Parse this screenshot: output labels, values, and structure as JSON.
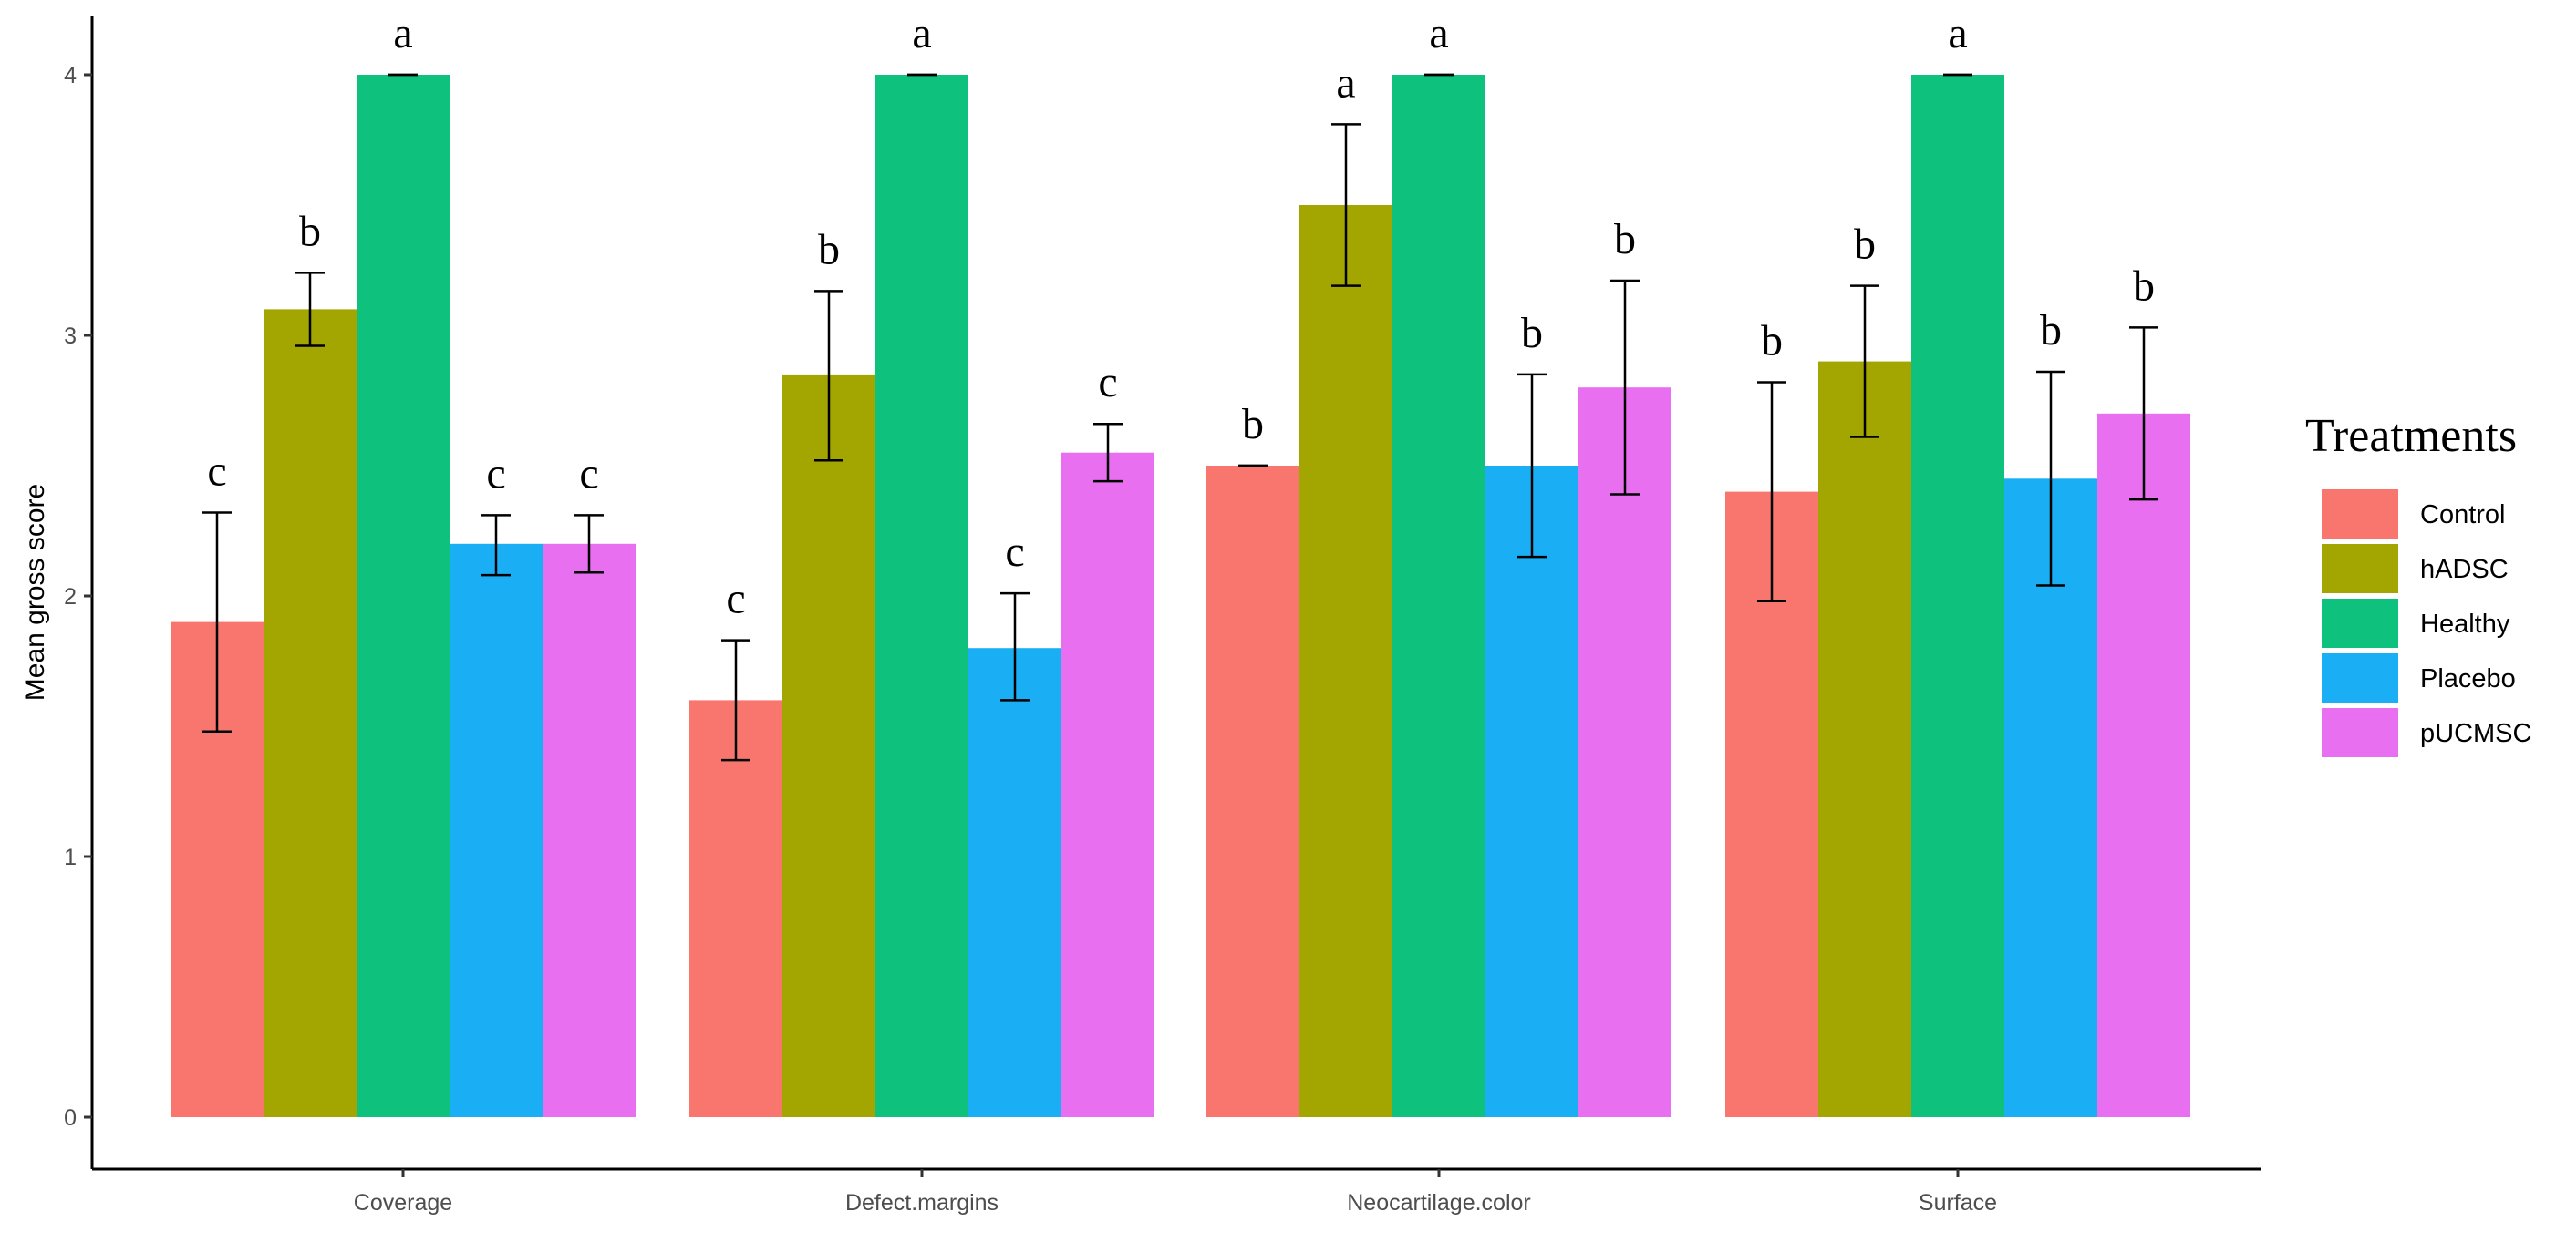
{
  "chart_data": {
    "type": "bar",
    "title": "",
    "xlabel": "",
    "ylabel": "Mean gross score",
    "ylim": [
      0,
      4.25
    ],
    "yticks": [
      "0",
      "1",
      "2",
      "3",
      "4"
    ],
    "grid": false,
    "legend_position": "right",
    "legend_title": "Treatments",
    "categories": [
      "Coverage",
      "Defect.margins",
      "Neocartilage.color",
      "Surface"
    ],
    "series": [
      {
        "name": "Control",
        "color": "#f8766d",
        "values": [
          1.9,
          1.6,
          2.5,
          2.4
        ],
        "errors": [
          [
            1.48,
            2.32
          ],
          [
            1.37,
            1.83
          ],
          [
            2.5,
            2.5
          ],
          [
            1.98,
            2.82
          ]
        ],
        "labels": [
          "c",
          "c",
          "b",
          "b"
        ]
      },
      {
        "name": "hADSC",
        "color": "#a3a500",
        "values": [
          3.1,
          2.85,
          3.5,
          2.9
        ],
        "errors": [
          [
            2.96,
            3.24
          ],
          [
            2.52,
            3.17
          ],
          [
            3.19,
            3.81
          ],
          [
            2.61,
            3.19
          ]
        ],
        "labels": [
          "b",
          "b",
          "a",
          "b"
        ]
      },
      {
        "name": "Healthy",
        "color": "#0ec17d",
        "values": [
          4.0,
          4.0,
          4.0,
          4.0
        ],
        "errors": [
          [
            4.0,
            4.0
          ],
          [
            4.0,
            4.0
          ],
          [
            4.0,
            4.0
          ],
          [
            4.0,
            4.0
          ]
        ],
        "labels": [
          "a",
          "a",
          "a",
          "a"
        ]
      },
      {
        "name": "Placebo",
        "color": "#1aaff4",
        "values": [
          2.2,
          1.8,
          2.5,
          2.45
        ],
        "errors": [
          [
            2.08,
            2.31
          ],
          [
            1.6,
            2.01
          ],
          [
            2.15,
            2.85
          ],
          [
            2.04,
            2.86
          ]
        ],
        "labels": [
          "c",
          "c",
          "b",
          "b"
        ]
      },
      {
        "name": "pUCMSC",
        "color": "#e86ff0",
        "values": [
          2.2,
          2.55,
          2.8,
          2.7
        ],
        "errors": [
          [
            2.09,
            2.31
          ],
          [
            2.44,
            2.66
          ],
          [
            2.39,
            3.21
          ],
          [
            2.37,
            3.03
          ]
        ],
        "labels": [
          "c",
          "c",
          "b",
          "b"
        ]
      }
    ]
  }
}
